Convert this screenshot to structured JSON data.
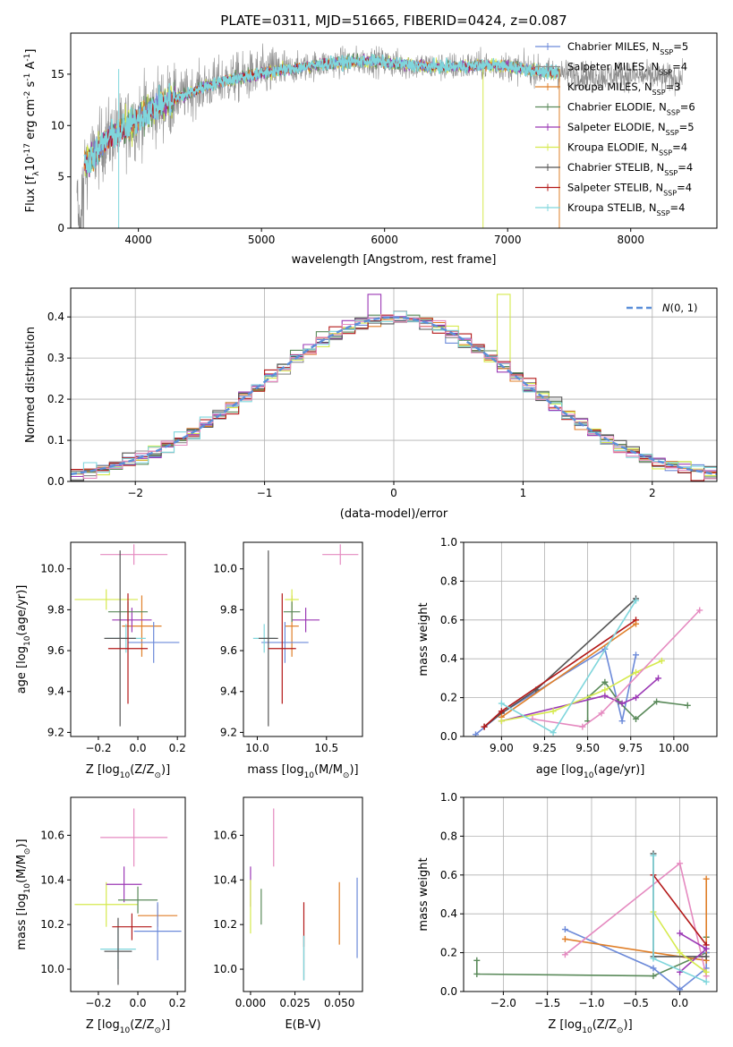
{
  "colors": {
    "Chabrier MILES": "#6c8ad9",
    "Salpeter MILES": "#8c8c8c",
    "Kroupa MILES": "#e07f29",
    "Chabrier ELODIE": "#5a8a5a",
    "Salpeter ELODIE": "#9b39b5",
    "Kroupa ELODIE": "#d6ea4e",
    "Chabrier STELIB": "#555555",
    "Salpeter STELIB": "#b31818",
    "Kroupa STELIB": "#7fd6dc",
    "pink": "#e58ac0",
    "gauss": "#5b8fd9"
  },
  "chart_data": [
    {
      "id": "spectrum",
      "type": "line",
      "title": "PLATE=0311, MJD=51665, FIBERID=0424, z=0.087",
      "xlabel": "wavelength [Angstrom, rest frame]",
      "ylabel": "Flux [f$_\\lambda$10$^{-17}$ erg cm$^{-2}$ s$^{-1}$ A$^{-1}$]",
      "xlim": [
        3450,
        8700
      ],
      "ylim": [
        0,
        19
      ],
      "xticks": [
        "4000",
        "5000",
        "6000",
        "7000",
        "8000"
      ],
      "yticks": [
        "0",
        "5",
        "10",
        "15"
      ],
      "grid": false,
      "legend_position": "top-right",
      "legend": [
        {
          "label": "Chabrier MILES, N",
          "sub": "SSP",
          "suffix": "=5",
          "color": "#6c8ad9"
        },
        {
          "label": "Salpeter MILES, N",
          "sub": "SSP",
          "suffix": "=4",
          "color": "#8c8c8c"
        },
        {
          "label": "Kroupa MILES, N",
          "sub": "SSP",
          "suffix": "=3",
          "color": "#e07f29"
        },
        {
          "label": "Chabrier ELODIE, N",
          "sub": "SSP",
          "suffix": "=6",
          "color": "#5a8a5a"
        },
        {
          "label": "Salpeter ELODIE, N",
          "sub": "SSP",
          "suffix": "=5",
          "color": "#9b39b5"
        },
        {
          "label": "Kroupa ELODIE, N",
          "sub": "SSP",
          "suffix": "=4",
          "color": "#d6ea4e"
        },
        {
          "label": "Chabrier STELIB, N",
          "sub": "SSP",
          "suffix": "=4",
          "color": "#555555"
        },
        {
          "label": "Salpeter STELIB, N",
          "sub": "SSP",
          "suffix": "=4",
          "color": "#b31818"
        },
        {
          "label": "Kroupa STELIB, N",
          "sub": "SSP",
          "suffix": "=4",
          "color": "#7fd6dc"
        }
      ],
      "continuum": [
        [
          3550,
          6.2
        ],
        [
          3650,
          7.2
        ],
        [
          3750,
          8.8
        ],
        [
          3850,
          9.4
        ],
        [
          3950,
          10.2
        ],
        [
          4050,
          11.2
        ],
        [
          4150,
          11.9
        ],
        [
          4300,
          12.6
        ],
        [
          4500,
          13.6
        ],
        [
          4700,
          14.4
        ],
        [
          4900,
          14.8
        ],
        [
          5100,
          15.3
        ],
        [
          5300,
          15.6
        ],
        [
          5500,
          16.0
        ],
        [
          5700,
          16.2
        ],
        [
          5900,
          16.3
        ],
        [
          6100,
          16.0
        ],
        [
          6300,
          15.8
        ],
        [
          6500,
          15.7
        ],
        [
          6700,
          15.8
        ],
        [
          6900,
          15.9
        ],
        [
          7100,
          15.6
        ],
        [
          7300,
          15.2
        ],
        [
          7500,
          15.0
        ],
        [
          7700,
          14.8
        ],
        [
          7900,
          14.9
        ],
        [
          8100,
          14.8
        ],
        [
          8300,
          14.6
        ]
      ],
      "model_end": 7420,
      "data_end": 8420
    },
    {
      "id": "residuals",
      "type": "line",
      "xlabel": "(data-model)/error",
      "ylabel": "Normed distribution",
      "xlim": [
        -2.5,
        2.5
      ],
      "ylim": [
        0,
        0.47
      ],
      "xticks": [
        "−2",
        "−1",
        "0",
        "1",
        "2"
      ],
      "yticks": [
        "0.0",
        "0.1",
        "0.2",
        "0.3",
        "0.4"
      ],
      "grid": true,
      "legend_position": "top-right",
      "legend": [
        {
          "label": "𝒩(0, 1)",
          "color": "#5b8fd9",
          "style": "dashed"
        }
      ],
      "bin_width": 0.1
    },
    {
      "id": "age_vs_Z",
      "type": "scatter",
      "xlabel": "Z [log$_{10}$(Z/Z$_\\odot$)]",
      "ylabel": "age  [log$_{10}$(age/yr)]",
      "xlim": [
        -0.34,
        0.24
      ],
      "ylim": [
        9.18,
        10.13
      ],
      "xticks": [
        "−0.2",
        "0.0",
        "0.2"
      ],
      "yticks": [
        "9.2",
        "9.4",
        "9.6",
        "9.8",
        "10.0"
      ],
      "errorbars": [
        {
          "x": -0.02,
          "xerr": 0.17,
          "y": 10.07,
          "yerr": 0.05,
          "color": "#e58ac0"
        },
        {
          "x": 0.02,
          "xerr": 0.1,
          "y": 9.72,
          "yerr": 0.15,
          "color": "#e07f29"
        },
        {
          "x": -0.16,
          "xerr": 0.16,
          "y": 9.85,
          "yerr": 0.05,
          "color": "#d6ea4e"
        },
        {
          "x": -0.03,
          "xerr": 0.1,
          "y": 9.75,
          "yerr": 0.06,
          "color": "#9b39b5"
        },
        {
          "x": -0.05,
          "xerr": 0.1,
          "y": 9.79,
          "yerr": 0.05,
          "color": "#5a8a5a"
        },
        {
          "x": 0.08,
          "xerr": 0.13,
          "y": 9.64,
          "yerr": 0.1,
          "color": "#6c8ad9"
        },
        {
          "x": -0.06,
          "xerr": 0.1,
          "y": 9.66,
          "yerr": 0.07,
          "color": "#7fd6dc"
        },
        {
          "x": -0.09,
          "xerr": 0.08,
          "y": 9.66,
          "yerr": 0.43,
          "color": "#555555"
        },
        {
          "x": -0.05,
          "xerr": 0.1,
          "y": 9.61,
          "yerr": 0.27,
          "color": "#b31818"
        }
      ]
    },
    {
      "id": "age_vs_mass",
      "type": "scatter",
      "xlabel": "mass [log$_{10}$(M/M$_\\odot$)]",
      "ylabel": "",
      "xlim": [
        9.9,
        10.76
      ],
      "ylim": [
        9.18,
        10.13
      ],
      "xticks": [
        "10.0",
        "10.5"
      ],
      "yticks": [
        "9.2",
        "9.4",
        "9.6",
        "9.8",
        "10.0"
      ],
      "errorbars": [
        {
          "x": 10.6,
          "xerr": 0.13,
          "y": 10.07,
          "yerr": 0.05,
          "color": "#e58ac0"
        },
        {
          "x": 10.25,
          "xerr": 0.05,
          "y": 9.72,
          "yerr": 0.15,
          "color": "#e07f29"
        },
        {
          "x": 10.25,
          "xerr": 0.05,
          "y": 9.85,
          "yerr": 0.05,
          "color": "#d6ea4e"
        },
        {
          "x": 10.35,
          "xerr": 0.1,
          "y": 9.75,
          "yerr": 0.06,
          "color": "#9b39b5"
        },
        {
          "x": 10.25,
          "xerr": 0.06,
          "y": 9.79,
          "yerr": 0.05,
          "color": "#5a8a5a"
        },
        {
          "x": 10.2,
          "xerr": 0.17,
          "y": 9.64,
          "yerr": 0.1,
          "color": "#6c8ad9"
        },
        {
          "x": 10.05,
          "xerr": 0.08,
          "y": 9.66,
          "yerr": 0.07,
          "color": "#7fd6dc"
        },
        {
          "x": 10.08,
          "xerr": 0.07,
          "y": 9.66,
          "yerr": 0.43,
          "color": "#555555"
        },
        {
          "x": 10.18,
          "xerr": 0.1,
          "y": 9.61,
          "yerr": 0.27,
          "color": "#b31818"
        }
      ]
    },
    {
      "id": "mw_vs_age",
      "type": "line",
      "xlabel": "age  [log$_{10}$(age/yr)]",
      "ylabel": "mass weight",
      "xlim": [
        8.78,
        10.25
      ],
      "ylim": [
        0,
        1.0
      ],
      "xticks": [
        "9.00",
        "9.25",
        "9.50",
        "9.75",
        "10.00"
      ],
      "yticks": [
        "0.0",
        "0.2",
        "0.4",
        "0.6",
        "0.8",
        "1.0"
      ],
      "grid": true,
      "series": [
        {
          "color": "#6c8ad9",
          "points": [
            [
              8.85,
              0.01
            ],
            [
              9.0,
              0.12
            ],
            [
              9.6,
              0.45
            ],
            [
              9.7,
              0.08
            ],
            [
              9.78,
              0.42
            ]
          ]
        },
        {
          "color": "#555555",
          "points": [
            [
              8.9,
              0.05
            ],
            [
              9.0,
              0.12
            ],
            [
              9.2,
              0.24
            ],
            [
              9.78,
              0.71
            ]
          ]
        },
        {
          "color": "#b31818",
          "points": [
            [
              8.9,
              0.05
            ],
            [
              9.0,
              0.13
            ],
            [
              9.78,
              0.6
            ]
          ]
        },
        {
          "color": "#e07f29",
          "points": [
            [
              9.0,
              0.1
            ],
            [
              9.78,
              0.58
            ]
          ]
        },
        {
          "color": "#5a8a5a",
          "points": [
            [
              9.5,
              0.08
            ],
            [
              9.5,
              0.2
            ],
            [
              9.6,
              0.28
            ],
            [
              9.68,
              0.18
            ],
            [
              9.78,
              0.09
            ],
            [
              9.9,
              0.18
            ],
            [
              10.08,
              0.16
            ]
          ]
        },
        {
          "color": "#9b39b5",
          "points": [
            [
              9.0,
              0.08
            ],
            [
              9.6,
              0.21
            ],
            [
              9.7,
              0.17
            ],
            [
              9.78,
              0.2
            ],
            [
              9.91,
              0.3
            ]
          ]
        },
        {
          "color": "#d6ea4e",
          "points": [
            [
              9.0,
              0.08
            ],
            [
              9.3,
              0.13
            ],
            [
              9.6,
              0.24
            ],
            [
              9.78,
              0.33
            ],
            [
              9.93,
              0.39
            ]
          ]
        },
        {
          "color": "#e58ac0",
          "points": [
            [
              9.18,
              0.09
            ],
            [
              9.47,
              0.05
            ],
            [
              9.58,
              0.12
            ],
            [
              10.15,
              0.65
            ]
          ]
        },
        {
          "color": "#7fd6dc",
          "points": [
            [
              9.0,
              0.17
            ],
            [
              9.3,
              0.02
            ],
            [
              9.78,
              0.7
            ]
          ]
        }
      ]
    },
    {
      "id": "mass_vs_Z",
      "type": "scatter",
      "xlabel": "Z [log$_{10}$(Z/Z$_\\odot$)]",
      "ylabel": "mass [log$_{10}$(M/M$_\\odot$)]",
      "xlim": [
        -0.34,
        0.24
      ],
      "ylim": [
        9.9,
        10.77
      ],
      "xticks": [
        "−0.2",
        "0.0",
        "0.2"
      ],
      "yticks": [
        "10.0",
        "10.2",
        "10.4",
        "10.6"
      ],
      "errorbars": [
        {
          "x": -0.02,
          "xerr": 0.17,
          "y": 10.59,
          "yerr": 0.13,
          "color": "#e58ac0"
        },
        {
          "x": 0.1,
          "xerr": 0.1,
          "y": 10.24,
          "yerr": 0.05,
          "color": "#e07f29"
        },
        {
          "x": -0.16,
          "xerr": 0.16,
          "y": 10.29,
          "yerr": 0.1,
          "color": "#d6ea4e"
        },
        {
          "x": -0.07,
          "xerr": 0.09,
          "y": 10.38,
          "yerr": 0.08,
          "color": "#9b39b5"
        },
        {
          "x": 0.0,
          "xerr": 0.1,
          "y": 10.31,
          "yerr": 0.06,
          "color": "#5a8a5a"
        },
        {
          "x": 0.1,
          "xerr": 0.12,
          "y": 10.17,
          "yerr": 0.13,
          "color": "#6c8ad9"
        },
        {
          "x": -0.1,
          "xerr": 0.09,
          "y": 10.09,
          "yerr": 0.09,
          "color": "#7fd6dc"
        },
        {
          "x": -0.1,
          "xerr": 0.07,
          "y": 10.08,
          "yerr": 0.15,
          "color": "#555555"
        },
        {
          "x": -0.03,
          "xerr": 0.1,
          "y": 10.19,
          "yerr": 0.06,
          "color": "#b31818"
        }
      ]
    },
    {
      "id": "mass_vs_EBV",
      "type": "scatter",
      "xlabel": "E(B-V)",
      "ylabel": "",
      "xlim": [
        -0.004,
        0.063
      ],
      "ylim": [
        9.9,
        10.77
      ],
      "xticks": [
        "0.000",
        "0.025",
        "0.050"
      ],
      "yticks": [
        "10.0",
        "10.2",
        "10.4",
        "10.6"
      ],
      "errorbars": [
        {
          "x": 0.0,
          "y": 10.37,
          "yerr": 0.09,
          "color": "#9b39b5"
        },
        {
          "x": 0.0,
          "y": 10.28,
          "yerr": 0.12,
          "color": "#d6ea4e"
        },
        {
          "x": 0.006,
          "y": 10.28,
          "yerr": 0.08,
          "color": "#5a8a5a"
        },
        {
          "x": 0.013,
          "y": 10.59,
          "yerr": 0.13,
          "color": "#e58ac0"
        },
        {
          "x": 0.03,
          "y": 10.2,
          "yerr": 0.1,
          "color": "#b31818"
        },
        {
          "x": 0.03,
          "y": 10.05,
          "yerr": 0.1,
          "color": "#555555"
        },
        {
          "x": 0.03,
          "y": 10.05,
          "yerr": 0.1,
          "color": "#7fd6dc"
        },
        {
          "x": 0.05,
          "y": 10.25,
          "yerr": 0.14,
          "color": "#e07f29"
        },
        {
          "x": 0.06,
          "y": 10.23,
          "yerr": 0.18,
          "color": "#6c8ad9"
        }
      ]
    },
    {
      "id": "mw_vs_Z",
      "type": "line",
      "xlabel": "Z [log$_{10}$(Z/Z$_\\odot$)]",
      "ylabel": "mass weight",
      "xlim": [
        -2.45,
        0.42
      ],
      "ylim": [
        0,
        1.0
      ],
      "xticks": [
        "−2.0",
        "−1.5",
        "−1.0",
        "−0.5",
        "0.0"
      ],
      "yticks": [
        "0.0",
        "0.2",
        "0.4",
        "0.6",
        "0.8",
        "1.0"
      ],
      "grid": true,
      "series": [
        {
          "color": "#5a8a5a",
          "points": [
            [
              -2.3,
              0.16
            ],
            [
              -2.3,
              0.09
            ],
            [
              -0.3,
              0.08
            ],
            [
              0.3,
              0.2
            ],
            [
              0.3,
              0.28
            ]
          ]
        },
        {
          "color": "#6c8ad9",
          "points": [
            [
              -1.3,
              0.32
            ],
            [
              -0.3,
              0.12
            ],
            [
              0.0,
              0.01
            ],
            [
              0.3,
              0.12
            ],
            [
              0.3,
              0.2
            ]
          ]
        },
        {
          "color": "#e07f29",
          "points": [
            [
              -1.3,
              0.27
            ],
            [
              -0.3,
              0.2
            ],
            [
              0.3,
              0.16
            ],
            [
              0.3,
              0.58
            ]
          ]
        },
        {
          "color": "#e58ac0",
          "points": [
            [
              -1.3,
              0.19
            ],
            [
              0.0,
              0.66
            ],
            [
              0.3,
              0.08
            ]
          ]
        },
        {
          "color": "#b31818",
          "points": [
            [
              -0.3,
              0.6
            ],
            [
              0.3,
              0.24
            ]
          ]
        },
        {
          "color": "#555555",
          "points": [
            [
              -0.3,
              0.71
            ],
            [
              -0.3,
              0.18
            ],
            [
              0.3,
              0.18
            ]
          ]
        },
        {
          "color": "#9b39b5",
          "points": [
            [
              0.0,
              0.3
            ],
            [
              0.3,
              0.22
            ],
            [
              0.0,
              0.1
            ]
          ]
        },
        {
          "color": "#d6ea4e",
          "points": [
            [
              -0.3,
              0.41
            ],
            [
              0.0,
              0.2
            ],
            [
              0.3,
              0.1
            ]
          ]
        },
        {
          "color": "#7fd6dc",
          "points": [
            [
              -0.3,
              0.7
            ],
            [
              -0.3,
              0.17
            ],
            [
              0.3,
              0.05
            ]
          ]
        }
      ]
    }
  ]
}
